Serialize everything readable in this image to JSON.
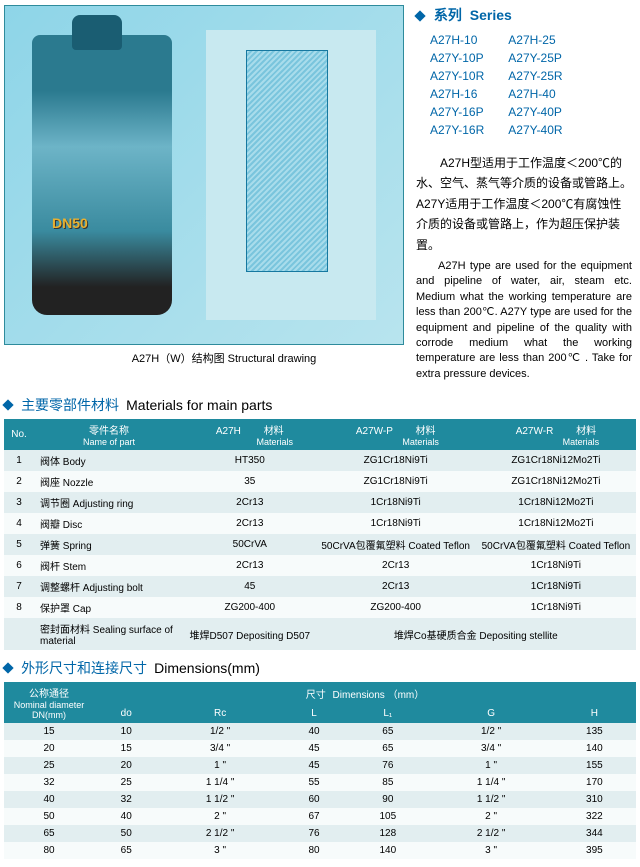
{
  "series": {
    "title_cn": "系列",
    "title_en": "Series",
    "left": [
      "A27H-10",
      "A27Y-10P",
      "A27Y-10R",
      "A27H-16",
      "A27Y-16P",
      "A27Y-16R"
    ],
    "right": [
      "A27H-25",
      "A27Y-25P",
      "A27Y-25R",
      "A27H-40",
      "A27Y-40P",
      "A27Y-40R"
    ]
  },
  "desc": {
    "cn1": "A27H型适用于工作温度＜200℃的水、空气、蒸气等介质的设备或管路上。A27Y适用于工作温度＜200℃有腐蚀性介质的设备或管路上，作为超压保护装置。",
    "en": "A27H type are used for the equipment and pipeline of water, air, steam etc. Medium what the working temperature are less than 200℃. A27Y type are used for the equipment and pipeline of the quality with corrode medium what the working temperature are less than 200℃ . Take for extra pressure devices."
  },
  "caption": "A27H（W）结构图  Structural drawing",
  "materials": {
    "title_cn": "主要零部件材料",
    "title_en": "Materials for main parts",
    "headers": {
      "no": "No.",
      "name_cn": "零件名称",
      "name_en": "Name of part",
      "col1": "A27H",
      "mat_cn": "材料",
      "mat_en": "Materials",
      "col2": "A27W-P",
      "col3": "A27W-R"
    },
    "rows": [
      {
        "no": "1",
        "name": "阀体  Body",
        "m1": "HT350",
        "m2": "ZG1Cr18Ni9Ti",
        "m3": "ZG1Cr18Ni12Mo2Ti"
      },
      {
        "no": "2",
        "name": "阀座  Nozzle",
        "m1": "35",
        "m2": "ZG1Cr18Ni9Ti",
        "m3": "ZG1Cr18Ni12Mo2Ti"
      },
      {
        "no": "3",
        "name": "调节圈  Adjusting ring",
        "m1": "2Cr13",
        "m2": "1Cr18Ni9Ti",
        "m3": "1Cr18Ni12Mo2Ti"
      },
      {
        "no": "4",
        "name": "阀瓣  Disc",
        "m1": "2Cr13",
        "m2": "1Cr18Ni9Ti",
        "m3": "1Cr18Ni12Mo2Ti"
      },
      {
        "no": "5",
        "name": "弹簧  Spring",
        "m1": "50CrVA",
        "m2": "50CrVA包覆氟塑料  Coated Teflon",
        "m3": "50CrVA包覆氟塑料  Coated Teflon"
      },
      {
        "no": "6",
        "name": "阀杆  Stem",
        "m1": "2Cr13",
        "m2": "2Cr13",
        "m3": "1Cr18Ni9Ti"
      },
      {
        "no": "7",
        "name": "调整螺杆  Adjusting bolt",
        "m1": "45",
        "m2": "2Cr13",
        "m3": "1Cr18Ni9Ti"
      },
      {
        "no": "8",
        "name": "保护罩  Cap",
        "m1": "ZG200-400",
        "m2": "ZG200-400",
        "m3": "1Cr18Ni9Ti"
      },
      {
        "no": "",
        "name": "密封面材料  Sealing surface of material",
        "m1": "堆焊D507  Depositing D507",
        "m2": "堆焊Co基硬质合金  Depositing stellite",
        "m3": ""
      }
    ]
  },
  "dimensions": {
    "title_cn": "外形尺寸和连接尺寸",
    "title_en": "Dimensions(mm)",
    "h_dn_cn": "公称通径",
    "h_dn_en": "Nominal diameter DN(mm)",
    "h_dim_cn": "尺寸",
    "h_dim_en": "Dimensions （mm）",
    "cols": [
      "do",
      "Rc",
      "L",
      "L₁",
      "G",
      "H"
    ],
    "rows": [
      {
        "dn": "15",
        "d": [
          "10",
          "1/2 \"",
          "40",
          "65",
          "1/2 \"",
          "135"
        ]
      },
      {
        "dn": "20",
        "d": [
          "15",
          "3/4 \"",
          "45",
          "65",
          "3/4 \"",
          "140"
        ]
      },
      {
        "dn": "25",
        "d": [
          "20",
          "1 \"",
          "45",
          "76",
          "1 \"",
          "155"
        ]
      },
      {
        "dn": "32",
        "d": [
          "25",
          "1 1/4 \"",
          "55",
          "85",
          "1 1/4 \"",
          "170"
        ]
      },
      {
        "dn": "40",
        "d": [
          "32",
          "1 1/2 \"",
          "60",
          "90",
          "1 1/2 \"",
          "310"
        ]
      },
      {
        "dn": "50",
        "d": [
          "40",
          "2 \"",
          "67",
          "105",
          "2 \"",
          "322"
        ]
      },
      {
        "dn": "65",
        "d": [
          "50",
          "2 1/2 \"",
          "76",
          "128",
          "2 1/2 \"",
          "344"
        ]
      },
      {
        "dn": "80",
        "d": [
          "65",
          "3 \"",
          "80",
          "140",
          "3 \"",
          "395"
        ]
      }
    ]
  }
}
